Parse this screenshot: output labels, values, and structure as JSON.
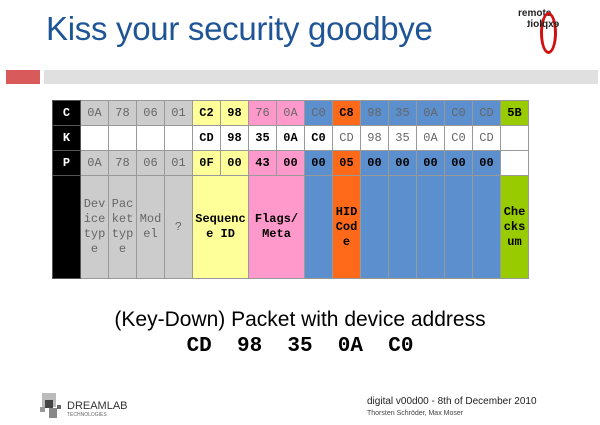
{
  "title": "Kiss your security goodbye",
  "logo": {
    "line1": "remote",
    "line2": "exploit"
  },
  "colors": {
    "gray": "#cccccc",
    "yellow": "#ffff99",
    "pink": "#ff99cc",
    "blue": "#5b8fce",
    "orange": "#ff6a1a",
    "green": "#99cc00",
    "white": "#ffffff",
    "title": "#1f5597"
  },
  "column_colors": [
    "gray",
    "gray",
    "gray",
    "gray",
    "yellow",
    "yellow",
    "pink",
    "pink",
    "blue",
    "orange",
    "blue",
    "blue",
    "blue",
    "blue",
    "blue",
    "green"
  ],
  "rows": [
    {
      "label": "C",
      "cells": [
        [
          "0A",
          0
        ],
        [
          "78",
          0
        ],
        [
          "06",
          0
        ],
        [
          "01",
          0
        ],
        [
          "C2",
          1
        ],
        [
          "98",
          1
        ],
        [
          "76",
          0
        ],
        [
          "0A",
          0
        ],
        [
          "C0",
          0
        ],
        [
          "C8",
          1
        ],
        [
          "98",
          0
        ],
        [
          "35",
          0
        ],
        [
          "0A",
          0
        ],
        [
          "C0",
          0
        ],
        [
          "CD",
          0
        ],
        [
          "5B",
          1
        ]
      ]
    },
    {
      "label": "K",
      "white": true,
      "cells": [
        [
          "",
          0
        ],
        [
          "",
          0
        ],
        [
          "",
          0
        ],
        [
          "",
          0
        ],
        [
          "CD",
          1
        ],
        [
          "98",
          1
        ],
        [
          "35",
          1
        ],
        [
          "0A",
          1
        ],
        [
          "C0",
          1
        ],
        [
          "CD",
          0
        ],
        [
          "98",
          0
        ],
        [
          "35",
          0
        ],
        [
          "0A",
          0
        ],
        [
          "C0",
          0
        ],
        [
          "CD",
          0
        ],
        [
          "",
          0
        ]
      ]
    },
    {
      "label": "P",
      "last_white": true,
      "cells": [
        [
          "0A",
          0
        ],
        [
          "78",
          0
        ],
        [
          "06",
          0
        ],
        [
          "01",
          0
        ],
        [
          "0F",
          1
        ],
        [
          "00",
          1
        ],
        [
          "43",
          1
        ],
        [
          "00",
          1
        ],
        [
          "00",
          1
        ],
        [
          "05",
          1
        ],
        [
          "00",
          1
        ],
        [
          "00",
          1
        ],
        [
          "00",
          1
        ],
        [
          "00",
          1
        ],
        [
          "00",
          1
        ],
        [
          "",
          0
        ]
      ]
    }
  ],
  "fields": [
    {
      "label": "Device type",
      "span": 1,
      "color": "gray",
      "bold": false
    },
    {
      "label": "Packet type",
      "span": 1,
      "color": "gray",
      "bold": false
    },
    {
      "label": "Model",
      "span": 1,
      "color": "gray",
      "bold": false
    },
    {
      "label": "?",
      "span": 1,
      "color": "gray",
      "bold": false
    },
    {
      "label": "Sequence ID",
      "span": 2,
      "color": "yellow",
      "bold": true
    },
    {
      "label": "Flags/ Meta",
      "span": 2,
      "color": "pink",
      "bold": true
    },
    {
      "label": "",
      "span": 1,
      "color": "blue",
      "bold": false
    },
    {
      "label": "HID Code",
      "span": 1,
      "color": "orange",
      "bold": true
    },
    {
      "label": "",
      "span": 1,
      "color": "blue",
      "bold": false
    },
    {
      "label": "",
      "span": 1,
      "color": "blue",
      "bold": false
    },
    {
      "label": "",
      "span": 1,
      "color": "blue",
      "bold": false
    },
    {
      "label": "",
      "span": 1,
      "color": "blue",
      "bold": false
    },
    {
      "label": "",
      "span": 1,
      "color": "blue",
      "bold": false
    },
    {
      "label": "Checksum",
      "span": 1,
      "color": "green",
      "bold": true
    }
  ],
  "subtitle": "(Key-Down) Packet with device address",
  "address": "CD 98 35 0A C0",
  "footer": {
    "company": "DREAMLAB",
    "company_sub": "TECHNOLOGIES",
    "event": "digital v00d00 - 8th of December 2010",
    "authors": "Thorsten Schröder, Max Moser"
  }
}
